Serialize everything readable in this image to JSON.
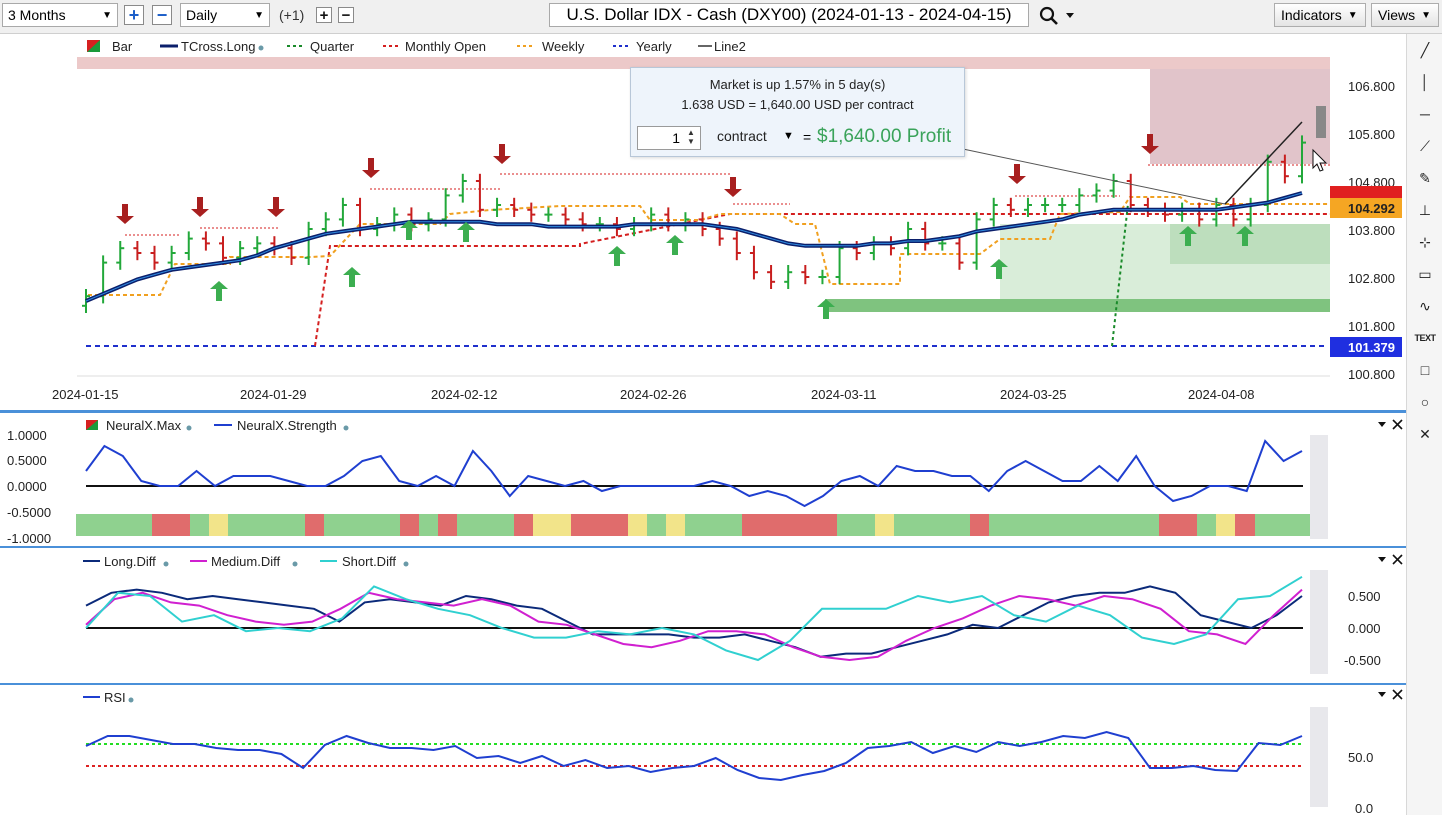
{
  "toolbar": {
    "period": "3 Months",
    "interval": "Daily",
    "offset": "(+1)",
    "title": "U.S. Dollar IDX - Cash (DXY00) (2024-01-13 - 2024-04-15)",
    "indicators_label": "Indicators",
    "views_label": "Views"
  },
  "price_panel": {
    "legend": [
      {
        "name": "Bar",
        "color": "#1a9a3a"
      },
      {
        "name": "TCross.Long",
        "color": "#0b1f6b"
      },
      {
        "name": "Quarter",
        "color": "#1a8a2a"
      },
      {
        "name": "Monthly Open",
        "color": "#d41f1f"
      },
      {
        "name": "Weekly",
        "color": "#f0a020"
      },
      {
        "name": "Yearly",
        "color": "#1f2fcc"
      },
      {
        "name": "Line2",
        "color": "#333333"
      }
    ],
    "y_ticks": [
      "106.800",
      "105.800",
      "104.800",
      "103.800",
      "102.800",
      "101.800",
      "100.800"
    ],
    "price_labels": [
      "104.292",
      "101.379"
    ],
    "x_ticks": [
      "2024-01-15",
      "2024-01-29",
      "2024-02-12",
      "2024-02-26",
      "2024-03-11",
      "2024-03-25",
      "2024-04-08"
    ]
  },
  "tooltip": {
    "line1": "Market is up 1.57% in 5 day(s)",
    "line2": "1.638 USD = 1,640.00 USD per contract",
    "quantity": "1",
    "unit": "contract",
    "equals": "=",
    "profit": "$1,640.00 Profit"
  },
  "neural_panel": {
    "legend": [
      {
        "name": "NeuralX.Max",
        "color": "#1a9a3a"
      },
      {
        "name": "NeuralX.Strength",
        "color": "#1f3fd0"
      }
    ],
    "y_ticks": [
      "1.0000",
      "0.5000",
      "0.0000",
      "-0.5000",
      "-1.0000"
    ]
  },
  "diff_panel": {
    "legend": [
      {
        "name": "Long.Diff",
        "color": "#0b2a7a"
      },
      {
        "name": "Medium.Diff",
        "color": "#d020d0"
      },
      {
        "name": "Short.Diff",
        "color": "#30d0d0"
      }
    ],
    "y_ticks": [
      "0.500",
      "0.000",
      "-0.500"
    ]
  },
  "rsi_panel": {
    "legend": [
      {
        "name": "RSI",
        "color": "#1f3fd0"
      }
    ],
    "y_ticks": [
      "50.0",
      "0.0"
    ]
  },
  "chart_data": {
    "type": "bar",
    "title": "U.S. Dollar IDX - Cash (DXY00) (2024-01-13 - 2024-04-15)",
    "x_ticks": [
      "2024-01-15",
      "2024-01-29",
      "2024-02-12",
      "2024-02-26",
      "2024-03-11",
      "2024-03-25",
      "2024-04-08"
    ],
    "ylim": [
      100.6,
      107.3
    ],
    "closes": [
      102.4,
      103.1,
      103.4,
      103.3,
      103.1,
      103.3,
      103.6,
      103.5,
      103.2,
      103.4,
      103.5,
      103.4,
      103.2,
      103.8,
      104.0,
      104.3,
      103.8,
      103.9,
      104.1,
      103.9,
      104.0,
      104.5,
      104.8,
      104.2,
      104.3,
      104.2,
      104.1,
      104.1,
      104.0,
      103.9,
      103.9,
      103.8,
      103.9,
      104.1,
      103.9,
      104.0,
      103.8,
      103.6,
      103.3,
      102.9,
      102.7,
      102.9,
      102.8,
      102.8,
      103.4,
      103.3,
      103.5,
      103.4,
      103.8,
      103.5,
      103.5,
      103.1,
      104.0,
      104.3,
      104.2,
      104.3,
      104.3,
      104.3,
      104.5,
      104.6,
      104.8,
      104.3,
      104.2,
      104.1,
      104.2,
      104.0,
      104.3,
      104.0,
      104.3,
      105.2,
      104.9,
      105.6
    ],
    "series": [
      {
        "name": "TCross.Long",
        "values": [
          102.3,
          102.45,
          102.6,
          102.75,
          102.85,
          102.95,
          103.0,
          103.05,
          103.1,
          103.15,
          103.25,
          103.4,
          103.5,
          103.6,
          103.7,
          103.75,
          103.8,
          103.85,
          103.9,
          103.95,
          103.95,
          103.95,
          103.95,
          103.95,
          103.9,
          103.9,
          103.9,
          103.85,
          103.85,
          103.85,
          103.85,
          103.85,
          103.9,
          103.9,
          103.9,
          103.9,
          103.9,
          103.85,
          103.8,
          103.7,
          103.6,
          103.5,
          103.45,
          103.45,
          103.45,
          103.45,
          103.5,
          103.5,
          103.55,
          103.55,
          103.6,
          103.65,
          103.75,
          103.8,
          103.85,
          103.9,
          103.95,
          104.0,
          104.1,
          104.15,
          104.2,
          104.2,
          104.2,
          104.2,
          104.2,
          104.2,
          104.2,
          104.25,
          104.3,
          104.35,
          104.45,
          104.55
        ]
      },
      {
        "name": "NeuralX.Strength",
        "values": [
          0.3,
          0.8,
          0.6,
          0.1,
          0.0,
          0.0,
          0.3,
          0.0,
          0.2,
          0.2,
          0.2,
          0.1,
          0.0,
          0.0,
          0.2,
          0.5,
          0.6,
          0.1,
          0.0,
          0.2,
          0.0,
          0.7,
          0.3,
          -0.2,
          0.2,
          0.1,
          0.0,
          0.1,
          -0.1,
          0.0,
          0.0,
          0.0,
          0.0,
          0.0,
          0.1,
          0.0,
          -0.2,
          -0.1,
          -0.2,
          -0.4,
          -0.2,
          0.1,
          0.2,
          0.0,
          0.4,
          0.3,
          0.3,
          0.2,
          0.2,
          -0.1,
          0.3,
          0.5,
          0.3,
          0.1,
          0.1,
          0.4,
          0.1,
          0.6,
          0.0,
          -0.3,
          -0.2,
          0.0,
          0.0,
          -0.1,
          0.9,
          0.5,
          0.7
        ]
      },
      {
        "name": "Long.Diff",
        "values": [
          0.35,
          0.55,
          0.6,
          0.55,
          0.45,
          0.5,
          0.45,
          0.4,
          0.35,
          0.3,
          0.1,
          0.4,
          0.45,
          0.4,
          0.35,
          0.5,
          0.45,
          0.35,
          0.3,
          0.1,
          -0.1,
          -0.1,
          -0.1,
          -0.1,
          -0.15,
          -0.15,
          -0.1,
          -0.2,
          -0.3,
          -0.45,
          -0.4,
          -0.4,
          -0.3,
          -0.2,
          -0.1,
          0.05,
          0.0,
          0.2,
          0.4,
          0.5,
          0.55,
          0.55,
          0.65,
          0.55,
          0.2,
          0.1,
          0.0,
          0.2,
          0.5
        ]
      },
      {
        "name": "Medium.Diff",
        "values": [
          0.05,
          0.45,
          0.55,
          0.4,
          0.35,
          0.2,
          0.1,
          0.05,
          0.1,
          0.3,
          0.55,
          0.45,
          0.4,
          0.35,
          0.45,
          0.35,
          0.1,
          0.05,
          -0.1,
          -0.25,
          -0.3,
          -0.2,
          -0.05,
          -0.05,
          -0.1,
          -0.3,
          -0.45,
          -0.5,
          -0.45,
          -0.2,
          0.0,
          0.15,
          0.35,
          0.5,
          0.45,
          0.35,
          0.5,
          0.45,
          0.3,
          -0.05,
          -0.1,
          -0.25,
          0.2,
          0.6
        ]
      },
      {
        "name": "Short.Diff",
        "values": [
          0.0,
          0.55,
          0.5,
          0.1,
          0.2,
          -0.05,
          0.0,
          -0.05,
          0.15,
          0.65,
          0.45,
          0.3,
          0.2,
          0.0,
          -0.15,
          -0.15,
          -0.05,
          -0.1,
          0.0,
          -0.1,
          -0.35,
          -0.5,
          -0.2,
          0.3,
          0.3,
          0.3,
          0.5,
          0.4,
          0.5,
          0.2,
          0.1,
          0.35,
          0.2,
          -0.15,
          -0.25,
          -0.1,
          0.45,
          0.5,
          0.8
        ]
      },
      {
        "name": "RSI",
        "values": [
          62,
          72,
          72,
          68,
          64,
          64,
          60,
          58,
          58,
          54,
          40,
          63,
          72,
          65,
          60,
          60,
          58,
          62,
          50,
          52,
          45,
          52,
          42,
          48,
          40,
          42,
          36,
          40,
          42,
          50,
          38,
          30,
          28,
          33,
          37,
          45,
          60,
          62,
          66,
          55,
          62,
          56,
          66,
          62,
          66,
          72,
          70,
          76,
          70,
          40,
          40,
          42,
          38,
          37,
          65,
          63,
          72
        ]
      }
    ]
  }
}
